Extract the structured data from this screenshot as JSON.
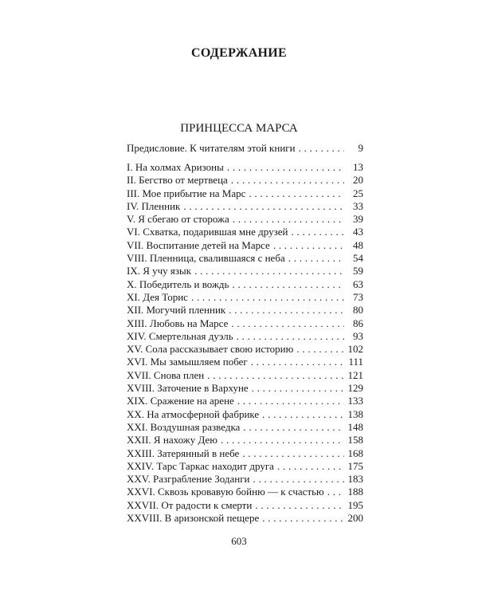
{
  "title": "СОДЕРЖАНИЕ",
  "section": "ПРИНЦЕССА МАРСА",
  "preface": {
    "label": "Предисловие. К читателям этой книги",
    "page": "9"
  },
  "chapters": [
    {
      "label": "I. На холмах Аризоны",
      "page": "13"
    },
    {
      "label": "II. Бегство от мертвеца",
      "page": "20"
    },
    {
      "label": "III. Мое прибытие на Марс",
      "page": "25"
    },
    {
      "label": "IV. Пленник",
      "page": "33"
    },
    {
      "label": "V. Я сбегаю от сторожа",
      "page": "39"
    },
    {
      "label": "VI. Схватка, подарившая мне друзей",
      "page": "43"
    },
    {
      "label": "VII. Воспитание детей на Марсе",
      "page": "48"
    },
    {
      "label": "VIII. Пленница, свалившаяся с неба",
      "page": "54"
    },
    {
      "label": "IX. Я учу язык",
      "page": "59"
    },
    {
      "label": "X. Победитель и вождь",
      "page": "63"
    },
    {
      "label": "XI. Дея Торис",
      "page": "73"
    },
    {
      "label": "XII. Могучий пленник",
      "page": "80"
    },
    {
      "label": "XIII. Любовь на Марсе",
      "page": "86"
    },
    {
      "label": "XIV. Смертельная дуэль",
      "page": "93"
    },
    {
      "label": "XV. Сола рассказывает свою историю",
      "page": "102"
    },
    {
      "label": "XVI. Мы замышляем побег",
      "page": "111"
    },
    {
      "label": "XVII. Снова плен",
      "page": "121"
    },
    {
      "label": "XVIII. Заточение в Вархуне",
      "page": "129"
    },
    {
      "label": "XIX. Сражение на арене",
      "page": "133"
    },
    {
      "label": "XX. На атмосферной фабрике",
      "page": "138"
    },
    {
      "label": "XXI. Воздушная разведка",
      "page": "148"
    },
    {
      "label": "XXII. Я нахожу Дею",
      "page": "158"
    },
    {
      "label": "XXIII. Затерянный в небе",
      "page": "168"
    },
    {
      "label": "XXIV. Тарс Таркас находит друга",
      "page": "175"
    },
    {
      "label": "XXV. Разграбление Зоданги",
      "page": "183"
    },
    {
      "label": "XXVI. Сквозь кровавую бойню — к счастью",
      "page": "188"
    },
    {
      "label": "XXVII. От радости к смерти",
      "page": "195"
    },
    {
      "label": "XXVIII. В аризонской пещере",
      "page": "200"
    }
  ],
  "folio": "603"
}
